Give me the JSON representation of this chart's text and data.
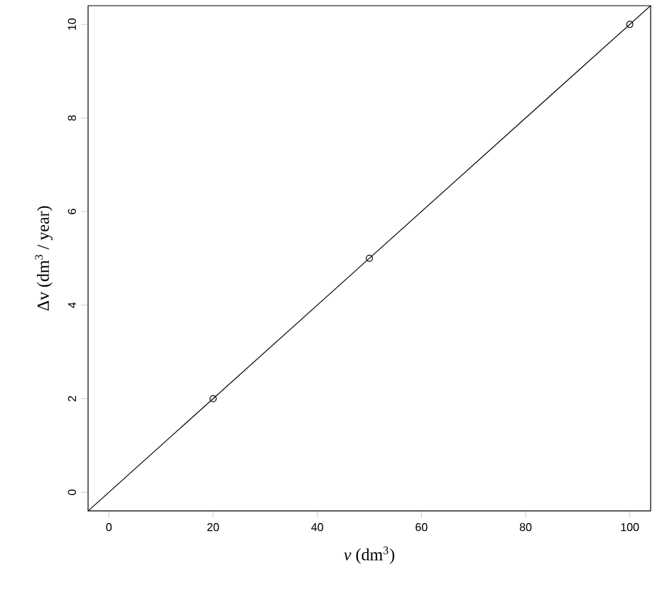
{
  "chart_data": {
    "type": "scatter",
    "xlabel": "*v* (dm$^{3}$)",
    "ylabel": "Δv (dm$^{3}$ / year)",
    "xlim": [
      -4,
      104
    ],
    "ylim": [
      -0.4,
      10.4
    ],
    "xticks": [
      0,
      20,
      40,
      60,
      80,
      100
    ],
    "yticks": [
      0,
      2,
      4,
      6,
      8,
      10
    ],
    "grid": false,
    "series": [
      {
        "marker": "circle",
        "color": "#000000",
        "x": [
          20,
          50,
          100
        ],
        "values": [
          2,
          5,
          10
        ]
      },
      {
        "type": "line",
        "marker": "none",
        "line_style": "solid",
        "color": "#000000",
        "x": [
          -4,
          104
        ],
        "values": [
          -0.4,
          10.4
        ]
      }
    ]
  }
}
